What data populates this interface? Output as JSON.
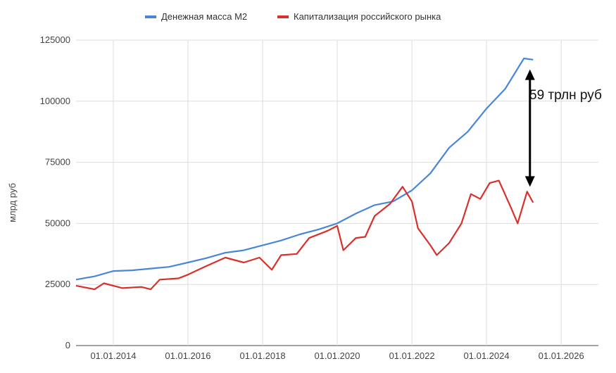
{
  "chart_data": {
    "type": "line",
    "title": "",
    "xlabel": "",
    "ylabel": "млрд руб",
    "ylim": [
      0,
      125000
    ],
    "xlim": [
      "2013-01-01",
      "2026-12-31"
    ],
    "grid": true,
    "legend_position": "top",
    "y_ticks": [
      "0",
      "25000",
      "50000",
      "75000",
      "100000",
      "125000"
    ],
    "x_ticks": [
      {
        "date": "2014-01-01",
        "label": "01.01.2014"
      },
      {
        "date": "2016-01-01",
        "label": "01.01.2016"
      },
      {
        "date": "2018-01-01",
        "label": "01.01.2018"
      },
      {
        "date": "2020-01-01",
        "label": "01.01.2020"
      },
      {
        "date": "2022-01-01",
        "label": "01.01.2022"
      },
      {
        "date": "2024-01-01",
        "label": "01.01.2024"
      },
      {
        "date": "2026-01-01",
        "label": "01.01.2026"
      }
    ],
    "annotation": {
      "text": "59 трлн руб",
      "date": "2025-03-01",
      "from": 65000,
      "to": 113000
    },
    "series": [
      {
        "name": "Денежная масса М2",
        "color": "#4a86d8",
        "points": [
          [
            "2013-01-01",
            27000
          ],
          [
            "2013-07-01",
            28300
          ],
          [
            "2014-01-01",
            30500
          ],
          [
            "2014-07-01",
            30800
          ],
          [
            "2015-01-01",
            31500
          ],
          [
            "2015-07-01",
            32200
          ],
          [
            "2016-01-01",
            34000
          ],
          [
            "2016-07-01",
            35800
          ],
          [
            "2017-01-01",
            38000
          ],
          [
            "2017-07-01",
            39000
          ],
          [
            "2018-01-01",
            41000
          ],
          [
            "2018-07-01",
            43000
          ],
          [
            "2019-01-01",
            45500
          ],
          [
            "2019-07-01",
            47500
          ],
          [
            "2020-01-01",
            50000
          ],
          [
            "2020-07-01",
            54000
          ],
          [
            "2021-01-01",
            57500
          ],
          [
            "2021-07-01",
            59000
          ],
          [
            "2022-01-01",
            63500
          ],
          [
            "2022-07-01",
            70500
          ],
          [
            "2023-01-01",
            81000
          ],
          [
            "2023-07-01",
            87500
          ],
          [
            "2024-01-01",
            97000
          ],
          [
            "2024-07-01",
            105000
          ],
          [
            "2025-01-01",
            117500
          ],
          [
            "2025-04-01",
            117000
          ]
        ]
      },
      {
        "name": "Капитализация российского рынка",
        "color": "#d9302c",
        "points": [
          [
            "2013-01-01",
            24500
          ],
          [
            "2013-07-01",
            23000
          ],
          [
            "2013-10-01",
            25500
          ],
          [
            "2014-04-01",
            23500
          ],
          [
            "2014-10-01",
            24000
          ],
          [
            "2015-01-01",
            23000
          ],
          [
            "2015-04-01",
            27000
          ],
          [
            "2015-10-01",
            27500
          ],
          [
            "2016-01-01",
            29000
          ],
          [
            "2016-06-01",
            32000
          ],
          [
            "2017-01-01",
            36000
          ],
          [
            "2017-07-01",
            34000
          ],
          [
            "2017-12-01",
            36000
          ],
          [
            "2018-04-01",
            31000
          ],
          [
            "2018-07-01",
            37000
          ],
          [
            "2018-12-01",
            37500
          ],
          [
            "2019-04-01",
            44000
          ],
          [
            "2019-10-01",
            47000
          ],
          [
            "2020-01-01",
            49000
          ],
          [
            "2020-03-01",
            39000
          ],
          [
            "2020-07-01",
            44000
          ],
          [
            "2020-10-01",
            44500
          ],
          [
            "2021-01-01",
            53000
          ],
          [
            "2021-06-01",
            58000
          ],
          [
            "2021-10-01",
            65000
          ],
          [
            "2022-01-01",
            59000
          ],
          [
            "2022-03-01",
            48000
          ],
          [
            "2022-07-01",
            41000
          ],
          [
            "2022-09-01",
            37000
          ],
          [
            "2023-01-01",
            42000
          ],
          [
            "2023-05-01",
            50000
          ],
          [
            "2023-08-01",
            62000
          ],
          [
            "2023-11-01",
            60000
          ],
          [
            "2024-02-01",
            66500
          ],
          [
            "2024-05-01",
            67500
          ],
          [
            "2024-09-01",
            56000
          ],
          [
            "2024-11-01",
            50000
          ],
          [
            "2025-02-01",
            63000
          ],
          [
            "2025-04-01",
            58500
          ]
        ]
      }
    ]
  }
}
